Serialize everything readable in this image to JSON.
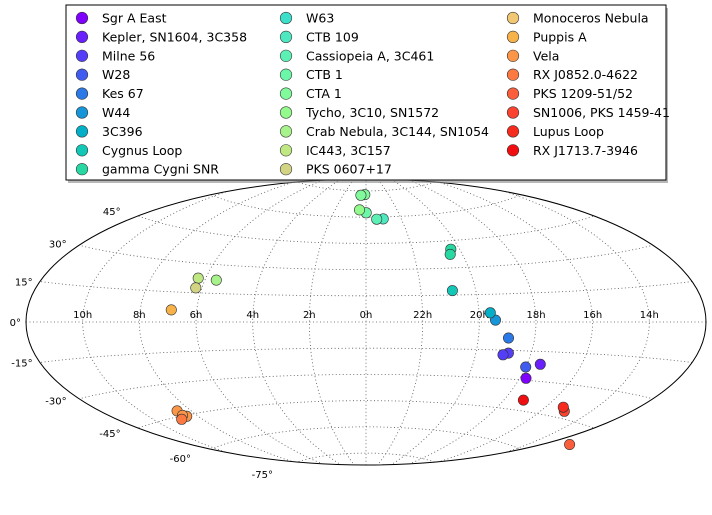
{
  "chart_data": {
    "type": "scatter",
    "projection": "aitoff",
    "x_unit": "hours of right ascension",
    "y_unit": "degrees of declination",
    "title": "",
    "xlabel": "",
    "ylabel": "",
    "grid": true,
    "legend_placement": "top-center, 3 columns",
    "ra_tick_labels": [
      "14h",
      "16h",
      "18h",
      "20h",
      "22h",
      "0h",
      "2h",
      "4h",
      "6h",
      "8h",
      "10h"
    ],
    "ra_tick_values": [
      14,
      16,
      18,
      20,
      22,
      0,
      2,
      4,
      6,
      8,
      10
    ],
    "dec_tick_labels": [
      "-75°",
      "-60°",
      "-45°",
      "-30°",
      "-15°",
      "0°",
      "15°",
      "30°",
      "45°"
    ],
    "dec_tick_values": [
      -75,
      -60,
      -45,
      -30,
      -15,
      0,
      15,
      30,
      45
    ],
    "series": [
      {
        "name": "Sgr A East",
        "color": "#7f00ff",
        "points": [
          [
            17.76,
            -29.0
          ]
        ]
      },
      {
        "name": "Kepler, SN1604, 3C358",
        "color": "#6a1ffd",
        "points": [
          [
            17.51,
            -21.5
          ]
        ]
      },
      {
        "name": "Milne 56",
        "color": "#553ef8",
        "points": [
          [
            18.82,
            -16.5
          ],
          [
            19.0,
            -17.5
          ]
        ]
      },
      {
        "name": "W28",
        "color": "#405cf0",
        "points": [
          [
            18.0,
            -23.3
          ]
        ]
      },
      {
        "name": "Kes 67",
        "color": "#2b79e6",
        "points": [
          [
            18.93,
            -8.5
          ]
        ]
      },
      {
        "name": "W44",
        "color": "#1696d8",
        "points": [
          [
            19.43,
            1.0
          ]
        ]
      },
      {
        "name": "3C396",
        "color": "#01b0c8",
        "points": [
          [
            19.6,
            5.0
          ]
        ]
      },
      {
        "name": "Cygnus Loop",
        "color": "#13c7b6",
        "points": [
          [
            20.85,
            17.5
          ]
        ]
      },
      {
        "name": "gamma Cygni SNR",
        "color": "#27d8a2",
        "points": [
          [
            20.37,
            40.3
          ],
          [
            20.5,
            37.5
          ]
        ]
      },
      {
        "name": "W63",
        "color": "#3bdfca",
        "points": []
      },
      {
        "name": "CTB 109",
        "color": "#4ee8c0",
        "points": [
          [
            23.02,
            58.9
          ]
        ]
      },
      {
        "name": "Cassiopeia A, 3C461",
        "color": "#5cf0b5",
        "points": [
          [
            23.39,
            58.8
          ]
        ]
      },
      {
        "name": "CTB 1",
        "color": "#6cf7a8",
        "points": [
          [
            23.99,
            62.5
          ]
        ]
      },
      {
        "name": "CTA 1",
        "color": "#80fa9a",
        "points": [
          [
            0.11,
            72.9
          ],
          [
            0.45,
            72.5
          ]
        ]
      },
      {
        "name": "Tycho, 3C10, SN1572",
        "color": "#93fb8c",
        "points": [
          [
            0.42,
            64.1
          ]
        ]
      },
      {
        "name": "Crab Nebula, 3C144, SN1054",
        "color": "#a7f28a",
        "points": [
          [
            5.58,
            22.0
          ]
        ]
      },
      {
        "name": "IC443, 3C157",
        "color": "#bfe882",
        "points": [
          [
            6.28,
            22.5
          ]
        ]
      },
      {
        "name": "PKS 0607+17",
        "color": "#d3d384",
        "points": [
          [
            6.22,
            17.5
          ]
        ]
      },
      {
        "name": "Monoceros Nebula",
        "color": "#f2c774",
        "points": []
      },
      {
        "name": "Puppis A",
        "color": "#f7b24a",
        "points": [
          [
            6.9,
            6.0
          ]
        ]
      },
      {
        "name": "Vela",
        "color": "#fb9648",
        "points": [
          [
            8.57,
            -42.5
          ],
          [
            8.48,
            -45.5
          ],
          [
            8.6,
            -44.8
          ]
        ]
      },
      {
        "name": "RX J0852.0-4622",
        "color": "#fc7a41",
        "points": [
          [
            8.87,
            -46.3
          ]
        ]
      },
      {
        "name": "PKS 1209-51/52",
        "color": "#fb5e3b",
        "points": [
          [
            12.35,
            -52.4
          ]
        ]
      },
      {
        "name": "SN1006, PKS 1459-41",
        "color": "#fc4330",
        "points": [
          [
            15.04,
            -41.9
          ]
        ]
      },
      {
        "name": "Lupus Loop",
        "color": "#f62a1d",
        "points": [
          [
            15.29,
            -40.3
          ]
        ]
      },
      {
        "name": "RX J1713.7-3946",
        "color": "#f10e10",
        "points": [
          [
            17.2,
            -39.8
          ]
        ]
      }
    ]
  }
}
